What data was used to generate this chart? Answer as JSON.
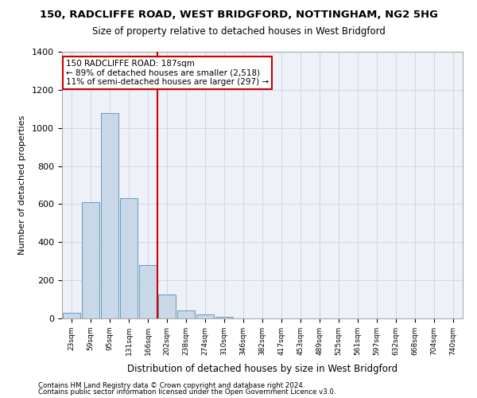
{
  "title_line1": "150, RADCLIFFE ROAD, WEST BRIDGFORD, NOTTINGHAM, NG2 5HG",
  "title_line2": "Size of property relative to detached houses in West Bridgford",
  "xlabel": "Distribution of detached houses by size in West Bridgford",
  "ylabel": "Number of detached properties",
  "footer_line1": "Contains HM Land Registry data © Crown copyright and database right 2024.",
  "footer_line2": "Contains public sector information licensed under the Open Government Licence v3.0.",
  "bin_labels": [
    "23sqm",
    "59sqm",
    "95sqm",
    "131sqm",
    "166sqm",
    "202sqm",
    "238sqm",
    "274sqm",
    "310sqm",
    "346sqm",
    "382sqm",
    "417sqm",
    "453sqm",
    "489sqm",
    "525sqm",
    "561sqm",
    "597sqm",
    "632sqm",
    "668sqm",
    "704sqm",
    "740sqm"
  ],
  "bar_values": [
    30,
    610,
    1080,
    630,
    280,
    125,
    40,
    20,
    10,
    0,
    0,
    0,
    0,
    0,
    0,
    0,
    0,
    0,
    0,
    0,
    0
  ],
  "bar_color": "#c8d8e8",
  "bar_edge_color": "#6699bb",
  "grid_color": "#d0d8e8",
  "background_color": "#eef2f8",
  "property_size": 187,
  "vline_x": 4.5,
  "vline_color": "#cc0000",
  "annotation_text_line1": "150 RADCLIFFE ROAD: 187sqm",
  "annotation_text_line2": "← 89% of detached houses are smaller (2,518)",
  "annotation_text_line3": "11% of semi-detached houses are larger (297) →",
  "annotation_box_color": "#ffffff",
  "annotation_box_edge_color": "#cc0000",
  "ylim": [
    0,
    1400
  ],
  "yticks": [
    0,
    200,
    400,
    600,
    800,
    1000,
    1200,
    1400
  ]
}
